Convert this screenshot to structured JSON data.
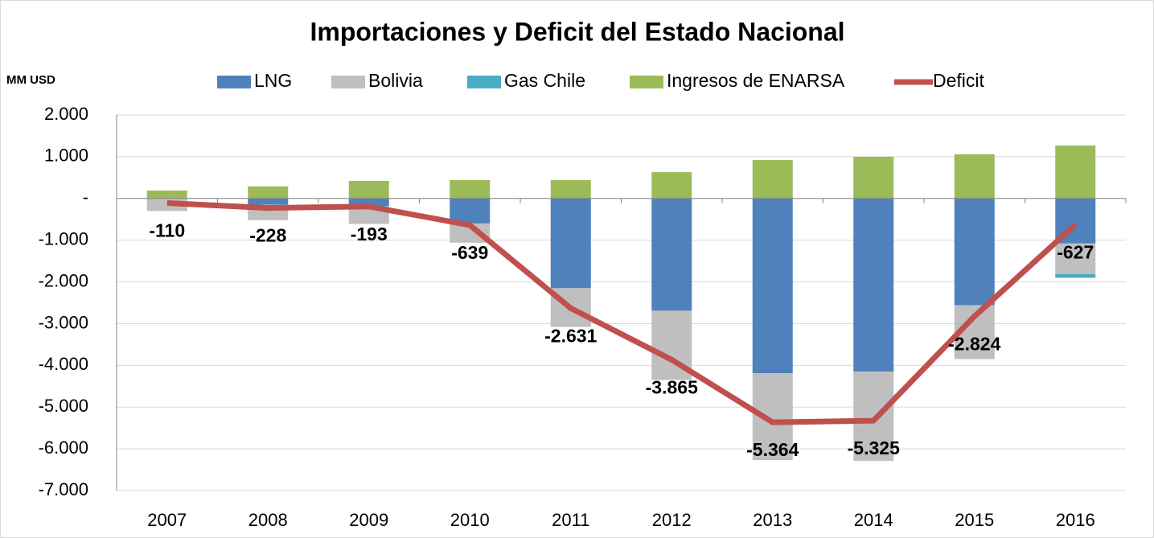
{
  "chart_data": {
    "type": "bar-line",
    "title": "Importaciones y Deficit del Estado Nacional",
    "y_label": "MM USD",
    "categories": [
      "2007",
      "2008",
      "2009",
      "2010",
      "2011",
      "2012",
      "2013",
      "2014",
      "2015",
      "2016"
    ],
    "series": [
      {
        "name": "LNG",
        "color": "#4f81bd",
        "type": "bar",
        "values": [
          0,
          -150,
          -190,
          -600,
          -2150,
          -2690,
          -4190,
          -4150,
          -2560,
          -1080
        ]
      },
      {
        "name": "Bolivia",
        "color": "#bfbfbf",
        "type": "bar",
        "values": [
          -300,
          -370,
          -420,
          -460,
          -930,
          -1660,
          -2080,
          -2140,
          -1290,
          -730
        ]
      },
      {
        "name": "Gas Chile",
        "color": "#4bacc6",
        "type": "bar",
        "values": [
          0,
          0,
          0,
          0,
          0,
          0,
          0,
          0,
          0,
          -90
        ]
      },
      {
        "name": "Ingresos de ENARSA",
        "color": "#9bbb59",
        "type": "bar",
        "values": [
          190,
          290,
          420,
          440,
          440,
          630,
          920,
          1000,
          1060,
          1270
        ]
      },
      {
        "name": "Deficit",
        "color": "#c0504d",
        "type": "line",
        "values": [
          -110,
          -228,
          -193,
          -639,
          -2631,
          -3865,
          -5364,
          -5325,
          -2824,
          -627
        ],
        "value_labels": [
          "-110",
          "-228",
          "-193",
          "-639",
          "-2.631",
          "-3.865",
          "-5.364",
          "-5.325",
          "-2.824",
          "-627"
        ]
      }
    ],
    "ylim": [
      -7000,
      2000
    ],
    "yticks": [
      {
        "value": 2000,
        "label": "2.000"
      },
      {
        "value": 1000,
        "label": "1.000"
      },
      {
        "value": 0,
        "label": "-"
      },
      {
        "value": -1000,
        "label": "-1.000"
      },
      {
        "value": -2000,
        "label": "-2.000"
      },
      {
        "value": -3000,
        "label": "-3.000"
      },
      {
        "value": -4000,
        "label": "-4.000"
      },
      {
        "value": -5000,
        "label": "-5.000"
      },
      {
        "value": -6000,
        "label": "-6.000"
      },
      {
        "value": -7000,
        "label": "-7.000"
      }
    ],
    "grid": true,
    "legend": "top"
  }
}
